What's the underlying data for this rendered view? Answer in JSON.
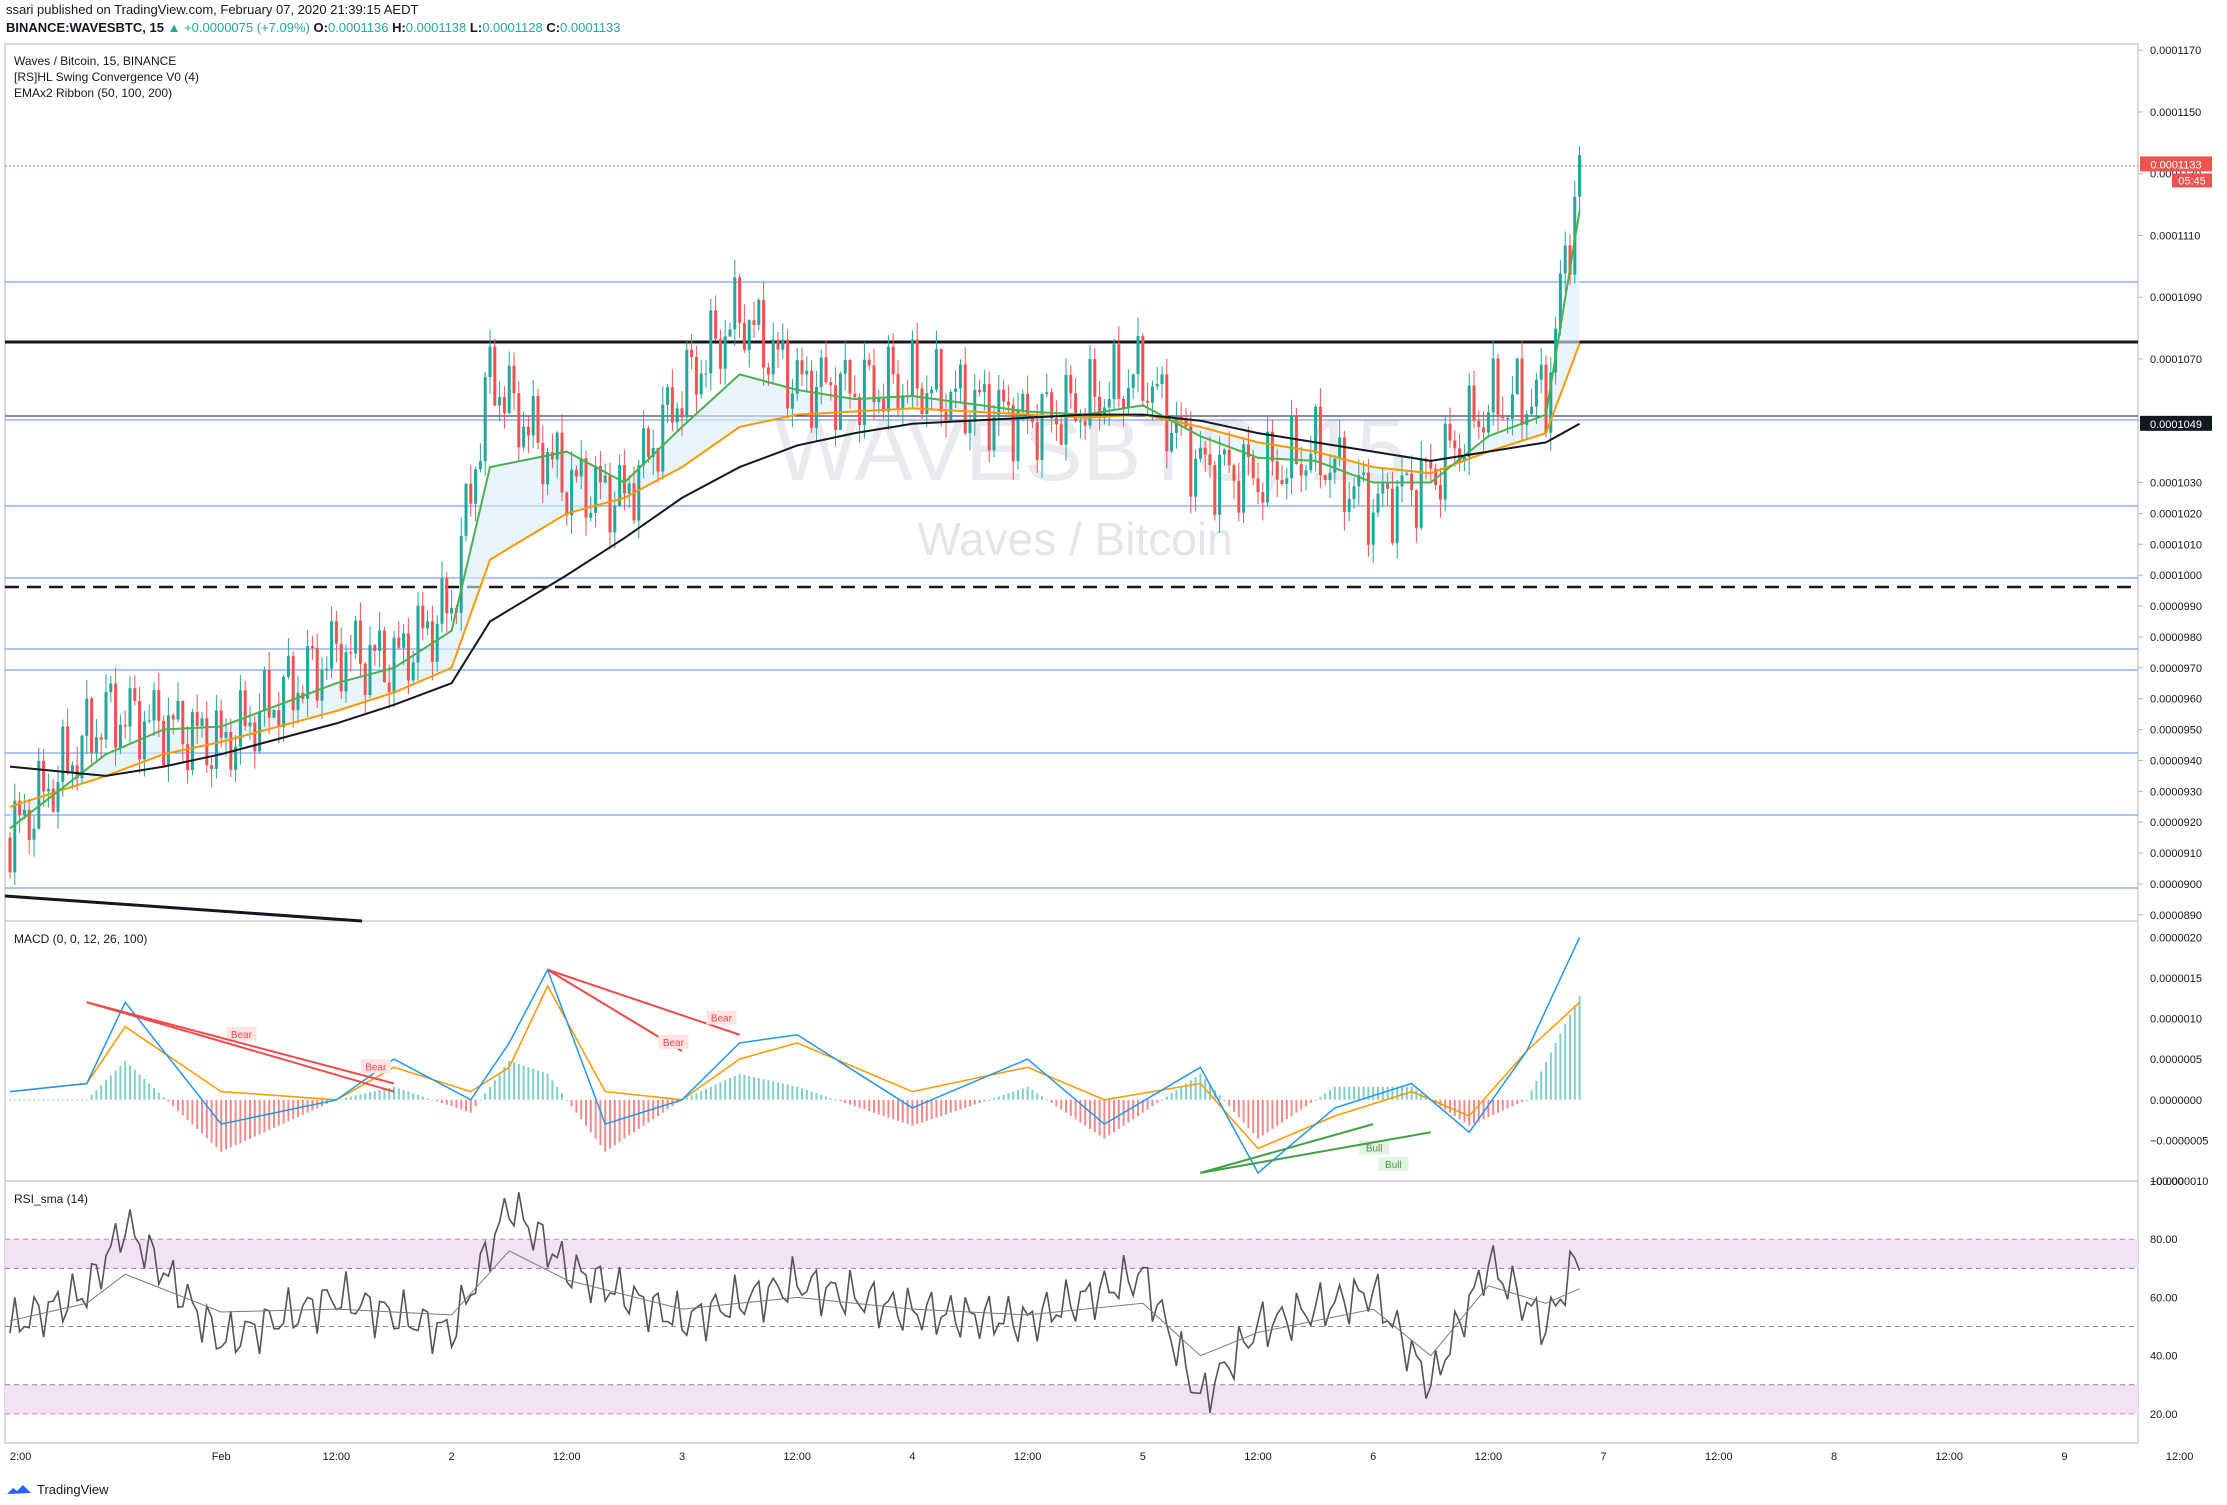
{
  "header": {
    "line1": "ssari published on TradingView.com, February 07, 2020 21:39:15 AEDT",
    "symbol": "BINANCE:WAVESBTC, 15",
    "arrow": "▲",
    "change": "+0.0000075 (+7.09%)",
    "o_label": "O:",
    "o_value": "0.0001136",
    "h_label": "H:",
    "h_value": "0.0001138",
    "l_label": "L:",
    "l_value": "0.0001128",
    "c_label": "C:",
    "c_value": "0.0001133"
  },
  "legend": {
    "title": "Waves / Bitcoin, 15, BINANCE",
    "ind1": "[RS]HL Swing Convergence V0 (4)",
    "ind2": "EMAx2 Ribbon (50, 100, 200)"
  },
  "watermark": {
    "symbol": "WAVESBTC, 15",
    "name": "Waves / Bitcoin"
  },
  "macd_title": "MACD (0, 0, 12, 26, 100)",
  "rsi_title": "RSI_sma (14)",
  "branding": "TradingView",
  "price_badges": {
    "last": "0.0001133",
    "countdown": "05:45",
    "ema200": "0.0001049"
  },
  "price_ticks": [
    "0.0001170",
    "0.0001150",
    "0.0001130",
    "0.0001110",
    "0.0001090",
    "0.0001070",
    "0.0001050",
    "0.0001030",
    "0.0001020",
    "0.0001010",
    "0.0001000",
    "0.0000990",
    "0.0000980",
    "0.0000970",
    "0.0000960",
    "0.0000950",
    "0.0000940",
    "0.0000930",
    "0.0000920",
    "0.0000910",
    "0.0000900",
    "0.0000890"
  ],
  "macd_ticks": [
    "0.0000020",
    "0.0000015",
    "0.0000010",
    "0.0000005",
    "0.0000000",
    "−0.0000005",
    "−0.0000010"
  ],
  "rsi_ticks": [
    "100.00",
    "80.00",
    "60.00",
    "40.00",
    "20.00"
  ],
  "time_ticks": [
    "2:00",
    "Feb",
    "12:00",
    "2",
    "12:00",
    "3",
    "12:00",
    "4",
    "12:00",
    "5",
    "12:00",
    "6",
    "12:00",
    "7",
    "12:00",
    "8",
    "12:00",
    "9",
    "12:00"
  ],
  "divergence_labels": {
    "bear": "Bear",
    "bull": "Bull"
  },
  "colors": {
    "up": "#26a69a",
    "down": "#ef5350",
    "ema50": "#4caf50",
    "ema100": "#ff9800",
    "ema200": "#131722",
    "macd": "#2196f3",
    "signal": "#ff9800",
    "rsi": "#555555",
    "band": "#f3e1f5",
    "hline": "#5b8def"
  },
  "chart_data": [
    {
      "type": "line",
      "title": "Waves / Bitcoin, 15, BINANCE",
      "ylim": [
        8.88e-05,
        0.0001172
      ],
      "x": [
        "Feb 1 02:00",
        "Feb 1 12:00",
        "Feb 1 18:00",
        "Feb 2 00:00",
        "Feb 2 12:00",
        "Feb 2 18:00",
        "Feb 3 00:00",
        "Feb 3 04:00",
        "Feb 3 12:00",
        "Feb 3 18:00",
        "Feb 4 00:00",
        "Feb 4 06:00",
        "Feb 4 12:00",
        "Feb 4 18:00",
        "Feb 5 00:00",
        "Feb 5 12:00",
        "Feb 5 18:00",
        "Feb 6 00:00",
        "Feb 6 06:00",
        "Feb 6 12:00",
        "Feb 6 18:00",
        "Feb 7 00:00",
        "Feb 7 06:00",
        "Feb 7 12:00",
        "Feb 7 18:00",
        "Feb 7 21:30"
      ],
      "series": [
        {
          "name": "Close",
          "values": [
            9.15e-05,
            9.55e-05,
            9.52e-05,
            9.45e-05,
            9.75e-05,
            9.72e-05,
            9.9e-05,
            0.0001065,
            0.000103,
            0.0001025,
            0.000106,
            0.0001085,
            0.0001062,
            0.000106,
            0.0001062,
            0.000105,
            0.0001055,
            0.0001065,
            0.0001035,
            0.0001032,
            0.000104,
            0.0001022,
            0.0001032,
            0.0001055,
            0.0001058,
            0.0001133
          ]
        },
        {
          "values": [
            9.18e-05,
            9.42e-05,
            9.5e-05,
            9.51e-05,
            9.65e-05,
            9.7e-05,
            9.82e-05,
            0.0001035,
            0.000104,
            0.000103,
            0.0001048,
            0.0001065,
            0.000106,
            0.0001057,
            0.0001058,
            0.0001053,
            0.0001052,
            0.0001055,
            0.0001045,
            0.0001038,
            0.0001037,
            0.000103,
            0.000103,
            0.0001045,
            0.0001052,
            0.0001118
          ]
        },
        {
          "values": [
            9.25e-05,
            9.35e-05,
            9.42e-05,
            9.46e-05,
            9.56e-05,
            9.62e-05,
            9.7e-05,
            0.0001005,
            0.000102,
            0.0001025,
            0.0001035,
            0.0001048,
            0.0001052,
            0.0001053,
            0.0001054,
            0.0001052,
            0.0001051,
            0.0001052,
            0.0001048,
            0.0001043,
            0.000104,
            0.0001035,
            0.0001033,
            0.000104,
            0.0001046,
            0.0001075
          ]
        },
        {
          "name": "0.0001049",
          "values": [
            9.38e-05,
            9.35e-05,
            9.38e-05,
            9.42e-05,
            9.52e-05,
            9.58e-05,
            9.65e-05,
            9.85e-05,
            0.0001,
            0.0001012,
            0.0001025,
            0.0001035,
            0.0001042,
            0.0001046,
            0.0001049,
            0.0001051,
            0.0001052,
            0.0001052,
            0.000105,
            0.0001046,
            0.0001043,
            0.000104,
            0.0001037,
            0.000104,
            0.0001043,
            0.0001049
          ]
        }
      ]
    },
    {
      "type": "bar",
      "title": "MACD (0, 0, 12, 26, 100)",
      "ylim": [
        -1e-06,
        2.2e-06
      ],
      "x": [
        "Feb 1 02:00",
        "Feb 1 10:00",
        "Feb 1 14:00",
        "Feb 2 00:00",
        "Feb 2 12:00",
        "Feb 2 18:00",
        "Feb 3 02:00",
        "Feb 3 06:00",
        "Feb 3 10:00",
        "Feb 3 16:00",
        "Feb 4 00:00",
        "Feb 4 06:00",
        "Feb 4 12:00",
        "Feb 5 00:00",
        "Feb 5 12:00",
        "Feb 5 20:00",
        "Feb 6 06:00",
        "Feb 6 12:00",
        "Feb 6 20:00",
        "Feb 7 04:00",
        "Feb 7 10:00",
        "Feb 7 16:00",
        "Feb 7 21:30"
      ],
      "series": [
        {
          "values": [
            1e-07,
            2e-07,
            1.2e-06,
            -3e-07,
            0.0,
            5e-07,
            0.0,
            7e-07,
            1.6e-06,
            -3e-07,
            0.0,
            7e-07,
            8e-07,
            -1e-07,
            5e-07,
            -3e-07,
            4e-07,
            -9e-07,
            -1e-07,
            2e-07,
            -4e-07,
            6e-07,
            2e-06
          ]
        },
        {
          "values": [
            1e-07,
            2e-07,
            9e-07,
            1e-07,
            0.0,
            4e-07,
            1e-07,
            4e-07,
            1.4e-06,
            1e-07,
            0.0,
            5e-07,
            7e-07,
            1e-07,
            4e-07,
            0.0,
            2e-07,
            -6e-07,
            -2e-07,
            1e-07,
            -2e-07,
            6e-07,
            1.2e-06
          ]
        }
      ],
      "annotations": [
        "Bear",
        "Bear",
        "Bear",
        "Bear",
        "Bear",
        "Bull",
        "Bull"
      ]
    },
    {
      "type": "line",
      "title": "RSI_sma (14)",
      "ylim": [
        10,
        100
      ],
      "x": [
        "Feb 1 02:00",
        "Feb 1 10:00",
        "Feb 1 14:00",
        "Feb 2 00:00",
        "Feb 2 12:00",
        "Feb 3 00:00",
        "Feb 3 06:00",
        "Feb 3 12:00",
        "Feb 4 00:00",
        "Feb 4 12:00",
        "Feb 5 00:00",
        "Feb 5 12:00",
        "Feb 6 00:00",
        "Feb 6 06:00",
        "Feb 6 12:00",
        "Feb 7 00:00",
        "Feb 7 06:00",
        "Feb 7 12:00",
        "Feb 7 18:00",
        "Feb 7 21:30"
      ],
      "series": [
        {
          "values": [
            50,
            62,
            85,
            45,
            60,
            48,
            92,
            70,
            52,
            65,
            55,
            52,
            68,
            25,
            50,
            62,
            30,
            72,
            50,
            75
          ]
        },
        {
          "values": [
            52,
            58,
            68,
            55,
            56,
            54,
            76,
            66,
            56,
            60,
            56,
            54,
            58,
            40,
            48,
            56,
            40,
            64,
            58,
            63
          ]
        }
      ]
    }
  ]
}
